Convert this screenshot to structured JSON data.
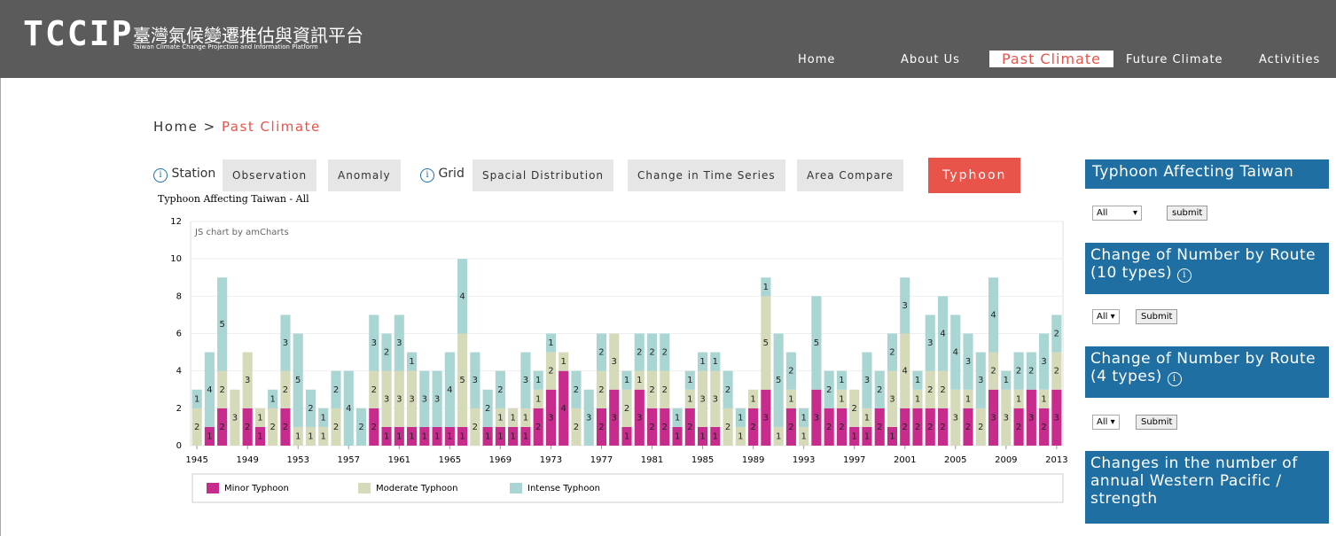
{
  "header": {
    "logo": "TCCIP",
    "title": "臺灣氣候變遷推估與資訊平台",
    "subtitle": "Taiwan Climate Change Projection and Information Platform"
  },
  "nav": [
    "Home",
    "About Us",
    "Past Climate",
    "Future Climate",
    "Activities"
  ],
  "breadcrumb": {
    "home": "Home",
    "sep": ">",
    "current": "Past Climate"
  },
  "tabs": {
    "station": "Station",
    "station_buttons": [
      "Observation",
      "Anomaly"
    ],
    "grid": "Grid",
    "grid_buttons": [
      "Spacial Distribution",
      "Change in Time Series",
      "Area Compare"
    ],
    "active": "Typhoon"
  },
  "chart_data": {
    "type": "bar",
    "stacked": true,
    "title": "Typhoon Affecting Taiwan - All",
    "credit": "JS chart by amCharts",
    "x": [
      1945,
      1946,
      1947,
      1948,
      1949,
      1950,
      1951,
      1952,
      1953,
      1954,
      1955,
      1956,
      1957,
      1958,
      1959,
      1960,
      1961,
      1962,
      1963,
      1964,
      1965,
      1966,
      1967,
      1968,
      1969,
      1970,
      1971,
      1972,
      1973,
      1974,
      1975,
      1976,
      1977,
      1978,
      1979,
      1980,
      1981,
      1982,
      1983,
      1984,
      1985,
      1986,
      1987,
      1988,
      1989,
      1990,
      1991,
      1992,
      1993,
      1994,
      1995,
      1996,
      1997,
      1998,
      1999,
      2000,
      2001,
      2002,
      2003,
      2004,
      2005,
      2006,
      2007,
      2008,
      2009,
      2010,
      2011,
      2012,
      2013
    ],
    "xlim": [
      1944.5,
      2013.5
    ],
    "xticks": [
      1945,
      1949,
      1953,
      1957,
      1961,
      1965,
      1969,
      1973,
      1977,
      1981,
      1985,
      1989,
      1993,
      1997,
      2001,
      2005,
      2009,
      2013
    ],
    "ylim": [
      0,
      12
    ],
    "yticks": [
      0,
      2,
      4,
      6,
      8,
      10,
      12
    ],
    "grid": true,
    "series": [
      {
        "name": "Minor Typhoon",
        "color": "#c72c8c",
        "values": [
          0,
          1,
          2,
          0,
          2,
          1,
          0,
          2,
          0,
          0,
          0,
          0,
          0,
          0,
          2,
          1,
          1,
          1,
          1,
          1,
          1,
          1,
          0,
          1,
          1,
          1,
          1,
          2,
          3,
          4,
          0,
          0,
          2,
          3,
          1,
          3,
          2,
          2,
          1,
          2,
          1,
          1,
          0,
          0,
          2,
          3,
          0,
          2,
          0,
          3,
          2,
          2,
          1,
          1,
          2,
          1,
          2,
          2,
          2,
          2,
          0,
          2,
          0,
          3,
          0,
          2,
          3,
          2,
          3
        ]
      },
      {
        "name": "Moderate Typhoon",
        "color": "#d5dbb9",
        "values": [
          2,
          0,
          2,
          3,
          3,
          1,
          2,
          2,
          1,
          1,
          1,
          2,
          0,
          0,
          2,
          3,
          3,
          3,
          0,
          0,
          0,
          5,
          2,
          0,
          1,
          1,
          1,
          1,
          2,
          1,
          2,
          0,
          2,
          3,
          2,
          1,
          2,
          2,
          0,
          1,
          3,
          3,
          2,
          1,
          1,
          5,
          1,
          1,
          1,
          0,
          0,
          1,
          2,
          1,
          0,
          3,
          4,
          1,
          2,
          2,
          3,
          1,
          2,
          2,
          3,
          1,
          0,
          1,
          2
        ]
      },
      {
        "name": "Intense Typhoon",
        "color": "#a9d6d3",
        "values": [
          1,
          4,
          5,
          0,
          0,
          0,
          1,
          3,
          5,
          2,
          1,
          2,
          4,
          2,
          3,
          2,
          3,
          1,
          3,
          3,
          4,
          4,
          3,
          2,
          2,
          0,
          3,
          1,
          1,
          0,
          2,
          3,
          2,
          0,
          1,
          2,
          2,
          2,
          1,
          1,
          1,
          1,
          2,
          1,
          0,
          1,
          5,
          2,
          1,
          5,
          2,
          1,
          0,
          3,
          2,
          2,
          3,
          1,
          3,
          4,
          4,
          3,
          3,
          4,
          1,
          2,
          2,
          3,
          2
        ]
      }
    ]
  },
  "sidebar": [
    {
      "title": "Typhoon Affecting Taiwan",
      "select": "All",
      "button": "submit"
    },
    {
      "title": "Change of Number by Route (10 types)",
      "select": "All",
      "button": "Submit"
    },
    {
      "title": "Change of Number by Route (4 types)",
      "select": "All",
      "button": "Submit"
    },
    {
      "title": "Changes in the number of annual Western Pacific / strength"
    }
  ]
}
